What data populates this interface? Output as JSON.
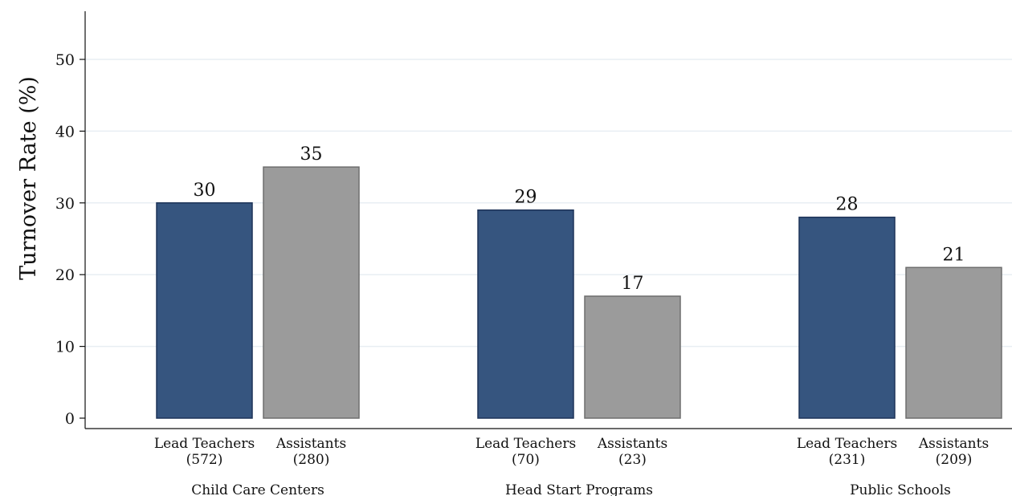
{
  "chart_data": {
    "type": "bar",
    "ylabel": "Turnover Rate (%)",
    "xlabel": "",
    "ylim": [
      0,
      57
    ],
    "yticks": [
      0,
      10,
      20,
      30,
      40,
      50
    ],
    "grid": true,
    "colors": {
      "lead": "#36557f",
      "lead_edge": "#1d3358",
      "assistant": "#9b9b9b",
      "assistant_edge": "#6e6e6e",
      "grid": "#e8eef3"
    },
    "groups": [
      {
        "label": "Child Care Centers",
        "bars": [
          {
            "label": "Lead Teachers",
            "n": "(572)",
            "value": 30,
            "kind": "lead"
          },
          {
            "label": "Assistants",
            "n": "(280)",
            "value": 35,
            "kind": "assistant"
          }
        ]
      },
      {
        "label": "Head Start Programs",
        "bars": [
          {
            "label": "Lead Teachers",
            "n": "(70)",
            "value": 29,
            "kind": "lead"
          },
          {
            "label": "Assistants",
            "n": "(23)",
            "value": 17,
            "kind": "assistant"
          }
        ]
      },
      {
        "label": "Public Schools",
        "bars": [
          {
            "label": "Lead Teachers",
            "n": "(231)",
            "value": 28,
            "kind": "lead"
          },
          {
            "label": "Assistants",
            "n": "(209)",
            "value": 21,
            "kind": "assistant"
          }
        ]
      }
    ]
  }
}
